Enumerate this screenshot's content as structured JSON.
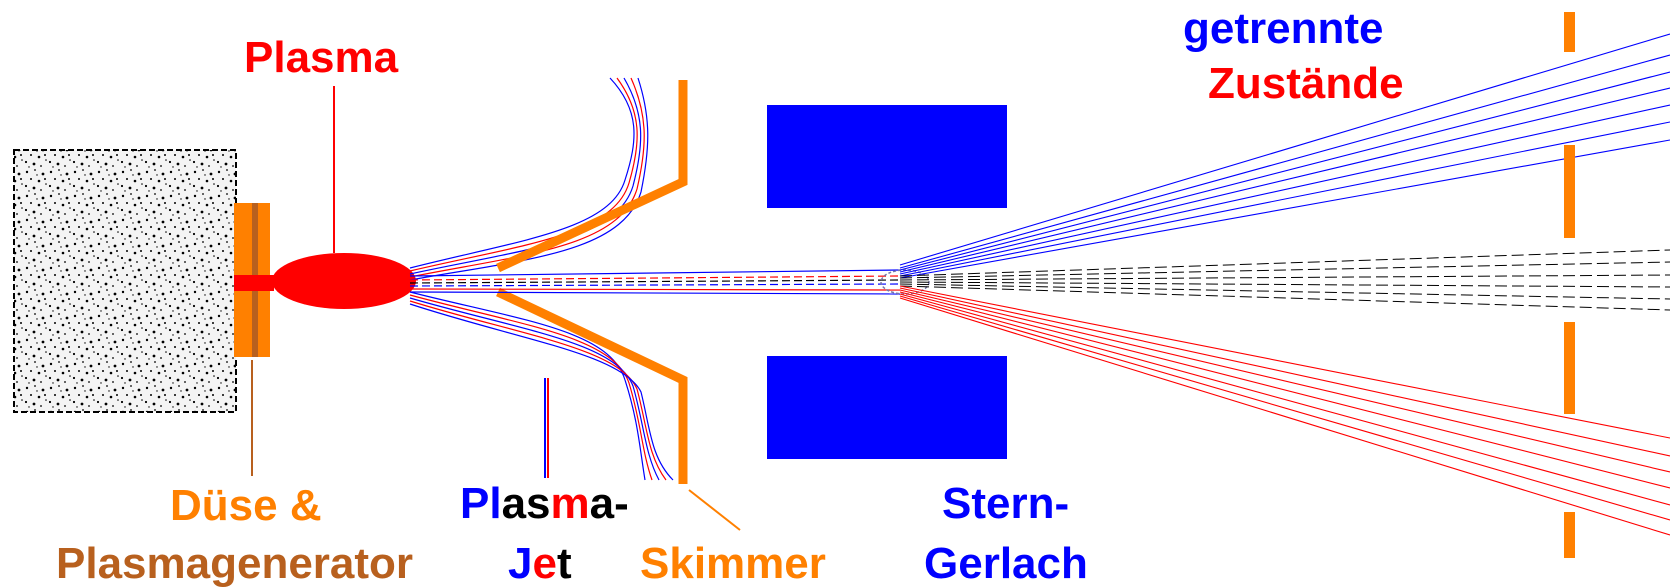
{
  "colors": {
    "red": "#ff0000",
    "blue": "#0000ff",
    "orange": "#ff8000",
    "brown": "#c0702a",
    "black": "#000000",
    "dark_orange": "#b8601e"
  },
  "labels": {
    "plasma": "Plasma",
    "nozzle_line1": "Düse &",
    "nozzle_line2": "Plasmagenerator",
    "jet_line1_parts": [
      "Pl",
      "as",
      "m",
      "a-"
    ],
    "jet_line2_parts": [
      "J",
      "e",
      "t"
    ],
    "skimmer": "Skimmer",
    "stern_line1": "Stern-",
    "stern_line2": "Gerlach",
    "states_line1": "getrennte",
    "states_line2": "Zustände"
  }
}
